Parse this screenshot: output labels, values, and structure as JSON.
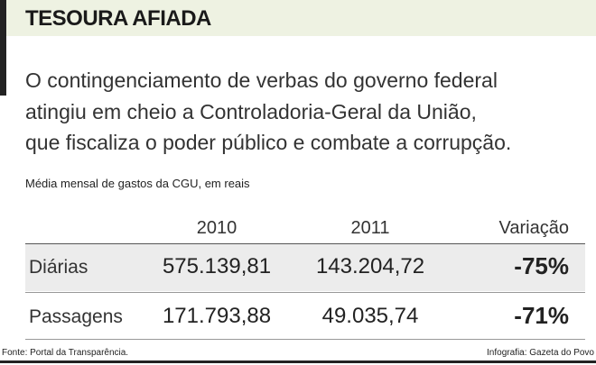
{
  "header": {
    "title": "TESOURA AFIADA"
  },
  "intro": [
    "O contingenciamento de verbas do governo federal",
    "atingiu em cheio a Controladoria-Geral da União,",
    "que fiscaliza o poder público e combate a corrupção."
  ],
  "subtitle": "Média mensal de gastos da CGU, em reais",
  "table": {
    "columns": [
      "2010",
      "2011",
      "Variação"
    ],
    "rows": [
      [
        "Diárias",
        "575.139,81",
        "143.204,72",
        "-75%"
      ],
      [
        "Passagens",
        "171.793,88",
        "49.035,74",
        "-71%"
      ]
    ]
  },
  "footer": {
    "source": "Fonte: Portal da Transparência.",
    "credit": "Infografia: Gazeta do Povo"
  }
}
